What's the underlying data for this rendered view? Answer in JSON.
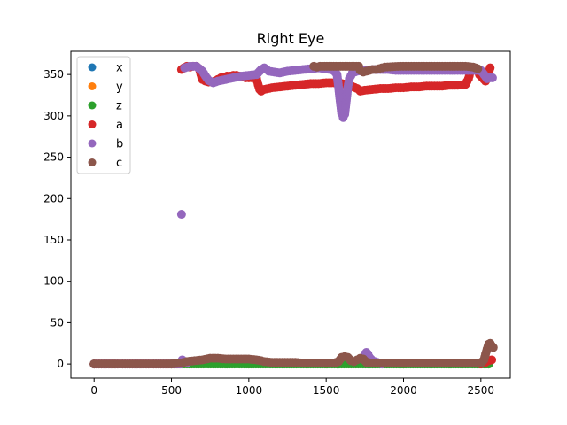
{
  "chart_data": {
    "type": "scatter",
    "title": "Right Eye",
    "xlabel": "",
    "ylabel": "",
    "xlim": [
      -150,
      2690
    ],
    "ylim": [
      -17,
      378
    ],
    "xticks": [
      0,
      500,
      1000,
      1500,
      2000,
      2500
    ],
    "yticks": [
      0,
      50,
      100,
      150,
      200,
      250,
      300,
      350
    ],
    "grid": false,
    "legend_position": "top-left",
    "series": [
      {
        "name": "x",
        "color": "#1f77b4",
        "points": [
          [
            0,
            0
          ],
          [
            500,
            0
          ],
          [
            1000,
            0
          ],
          [
            1500,
            0
          ],
          [
            2000,
            0
          ],
          [
            2550,
            0
          ]
        ]
      },
      {
        "name": "y",
        "color": "#ff7f0e",
        "points": [
          [
            0,
            0
          ],
          [
            500,
            0
          ],
          [
            1000,
            0
          ],
          [
            1500,
            0
          ],
          [
            2000,
            0
          ],
          [
            2550,
            0
          ]
        ]
      },
      {
        "name": "z",
        "color": "#2ca02c",
        "points": [
          [
            0,
            0
          ],
          [
            500,
            0
          ],
          [
            600,
            0
          ],
          [
            800,
            0
          ],
          [
            1000,
            0
          ],
          [
            1200,
            0
          ],
          [
            1400,
            0
          ],
          [
            1600,
            0
          ],
          [
            1800,
            0
          ],
          [
            2000,
            0
          ],
          [
            2200,
            0
          ],
          [
            2400,
            0
          ],
          [
            2550,
            0
          ]
        ]
      },
      {
        "name": "a",
        "color": "#d62728",
        "points": [
          [
            0,
            0
          ],
          [
            200,
            0
          ],
          [
            400,
            0
          ],
          [
            555,
            0
          ],
          [
            565,
            356
          ],
          [
            580,
            358
          ],
          [
            600,
            360
          ],
          [
            620,
            359
          ],
          [
            640,
            360
          ],
          [
            660,
            360
          ],
          [
            680,
            357
          ],
          [
            690,
            350
          ],
          [
            700,
            344
          ],
          [
            720,
            342
          ],
          [
            740,
            341
          ],
          [
            760,
            341
          ],
          [
            780,
            342
          ],
          [
            800,
            344
          ],
          [
            820,
            346
          ],
          [
            840,
            347
          ],
          [
            860,
            348
          ],
          [
            880,
            348
          ],
          [
            900,
            349
          ],
          [
            920,
            349
          ],
          [
            940,
            348
          ],
          [
            960,
            347
          ],
          [
            980,
            346
          ],
          [
            1000,
            346
          ],
          [
            1020,
            346
          ],
          [
            1040,
            347
          ],
          [
            1050,
            345
          ],
          [
            1060,
            338
          ],
          [
            1070,
            332
          ],
          [
            1080,
            330
          ],
          [
            1100,
            332
          ],
          [
            1150,
            334
          ],
          [
            1200,
            335
          ],
          [
            1250,
            336
          ],
          [
            1300,
            337
          ],
          [
            1350,
            338
          ],
          [
            1400,
            339
          ],
          [
            1450,
            339
          ],
          [
            1500,
            340
          ],
          [
            1550,
            340
          ],
          [
            1600,
            339
          ],
          [
            1650,
            337
          ],
          [
            1700,
            333
          ],
          [
            1720,
            330
          ],
          [
            1750,
            331
          ],
          [
            1800,
            332
          ],
          [
            1850,
            333
          ],
          [
            1900,
            333
          ],
          [
            1950,
            334
          ],
          [
            2000,
            334
          ],
          [
            2050,
            335
          ],
          [
            2100,
            335
          ],
          [
            2150,
            336
          ],
          [
            2200,
            336
          ],
          [
            2250,
            336
          ],
          [
            2300,
            337
          ],
          [
            2350,
            337
          ],
          [
            2400,
            338
          ],
          [
            2420,
            345
          ],
          [
            2430,
            352
          ],
          [
            2450,
            358
          ],
          [
            2470,
            357
          ],
          [
            2490,
            350
          ],
          [
            2510,
            346
          ],
          [
            2530,
            342
          ],
          [
            2545,
            350
          ],
          [
            2560,
            358
          ],
          [
            2500,
            0
          ],
          [
            2530,
            2
          ],
          [
            2550,
            4
          ],
          [
            2570,
            5
          ]
        ]
      },
      {
        "name": "b",
        "color": "#9467bd",
        "points": [
          [
            0,
            0
          ],
          [
            200,
            0
          ],
          [
            400,
            0
          ],
          [
            560,
            0
          ],
          [
            570,
            5
          ],
          [
            580,
            3
          ],
          [
            600,
            1
          ],
          [
            565,
            181
          ],
          [
            585,
            358
          ],
          [
            620,
            360
          ],
          [
            660,
            360
          ],
          [
            700,
            354
          ],
          [
            720,
            348
          ],
          [
            740,
            343
          ],
          [
            770,
            340
          ],
          [
            800,
            342
          ],
          [
            850,
            344
          ],
          [
            900,
            346
          ],
          [
            950,
            348
          ],
          [
            1000,
            349
          ],
          [
            1050,
            350
          ],
          [
            1080,
            356
          ],
          [
            1100,
            358
          ],
          [
            1130,
            354
          ],
          [
            1200,
            352
          ],
          [
            1250,
            354
          ],
          [
            1300,
            355
          ],
          [
            1350,
            356
          ],
          [
            1400,
            357
          ],
          [
            1450,
            358
          ],
          [
            1500,
            357
          ],
          [
            1550,
            355
          ],
          [
            1570,
            350
          ],
          [
            1580,
            335
          ],
          [
            1590,
            318
          ],
          [
            1600,
            303
          ],
          [
            1610,
            298
          ],
          [
            1620,
            302
          ],
          [
            1630,
            318
          ],
          [
            1640,
            335
          ],
          [
            1650,
            345
          ],
          [
            1670,
            352
          ],
          [
            1700,
            354
          ],
          [
            1750,
            355
          ],
          [
            1800,
            356
          ],
          [
            1850,
            356
          ],
          [
            1900,
            356
          ],
          [
            1950,
            355
          ],
          [
            2000,
            355
          ],
          [
            2050,
            355
          ],
          [
            2100,
            355
          ],
          [
            2150,
            355
          ],
          [
            2200,
            355
          ],
          [
            2250,
            355
          ],
          [
            2300,
            355
          ],
          [
            2350,
            355
          ],
          [
            2400,
            355
          ],
          [
            2450,
            355
          ],
          [
            2500,
            355
          ],
          [
            2520,
            350
          ],
          [
            2540,
            345
          ],
          [
            2560,
            346
          ],
          [
            2575,
            346
          ],
          [
            1740,
            8
          ],
          [
            1750,
            12
          ],
          [
            1760,
            14
          ],
          [
            1770,
            12
          ],
          [
            1780,
            8
          ],
          [
            1800,
            4
          ],
          [
            1830,
            2
          ],
          [
            1860,
            0
          ]
        ]
      },
      {
        "name": "c",
        "color": "#8c564b",
        "points": [
          [
            0,
            0
          ],
          [
            100,
            0
          ],
          [
            200,
            0
          ],
          [
            300,
            0
          ],
          [
            400,
            0
          ],
          [
            500,
            0
          ],
          [
            560,
            1
          ],
          [
            600,
            3
          ],
          [
            650,
            4
          ],
          [
            700,
            5
          ],
          [
            750,
            7
          ],
          [
            800,
            7
          ],
          [
            850,
            6
          ],
          [
            900,
            6
          ],
          [
            950,
            6
          ],
          [
            1000,
            6
          ],
          [
            1050,
            5
          ],
          [
            1080,
            4
          ],
          [
            1100,
            3
          ],
          [
            1150,
            2
          ],
          [
            1200,
            2
          ],
          [
            1250,
            2
          ],
          [
            1300,
            2
          ],
          [
            1350,
            1
          ],
          [
            1400,
            1
          ],
          [
            1450,
            1
          ],
          [
            1500,
            1
          ],
          [
            1550,
            1
          ],
          [
            1580,
            3
          ],
          [
            1600,
            8
          ],
          [
            1620,
            9
          ],
          [
            1640,
            8
          ],
          [
            1660,
            4
          ],
          [
            1680,
            3
          ],
          [
            1700,
            5
          ],
          [
            1720,
            7
          ],
          [
            1740,
            6
          ],
          [
            1760,
            2
          ],
          [
            1800,
            1
          ],
          [
            1900,
            1
          ],
          [
            2000,
            1
          ],
          [
            2200,
            1
          ],
          [
            2400,
            1
          ],
          [
            2500,
            1
          ],
          [
            2520,
            5
          ],
          [
            2530,
            12
          ],
          [
            2540,
            18
          ],
          [
            2550,
            24
          ],
          [
            2560,
            25
          ],
          [
            2570,
            22
          ],
          [
            2580,
            20
          ],
          [
            1420,
            360
          ],
          [
            1440,
            359
          ],
          [
            1460,
            360
          ],
          [
            1710,
            360
          ],
          [
            1720,
            355
          ],
          [
            1740,
            353
          ],
          [
            1760,
            354
          ],
          [
            1780,
            355
          ],
          [
            1800,
            356
          ],
          [
            1820,
            356
          ],
          [
            1840,
            357
          ],
          [
            1860,
            358
          ],
          [
            1880,
            359
          ],
          [
            1980,
            360
          ],
          [
            2050,
            360
          ],
          [
            2100,
            360
          ],
          [
            2150,
            360
          ],
          [
            2200,
            360
          ],
          [
            2250,
            360
          ],
          [
            2300,
            360
          ],
          [
            2350,
            360
          ],
          [
            2400,
            360
          ],
          [
            2450,
            359
          ],
          [
            2480,
            357
          ]
        ]
      }
    ]
  }
}
